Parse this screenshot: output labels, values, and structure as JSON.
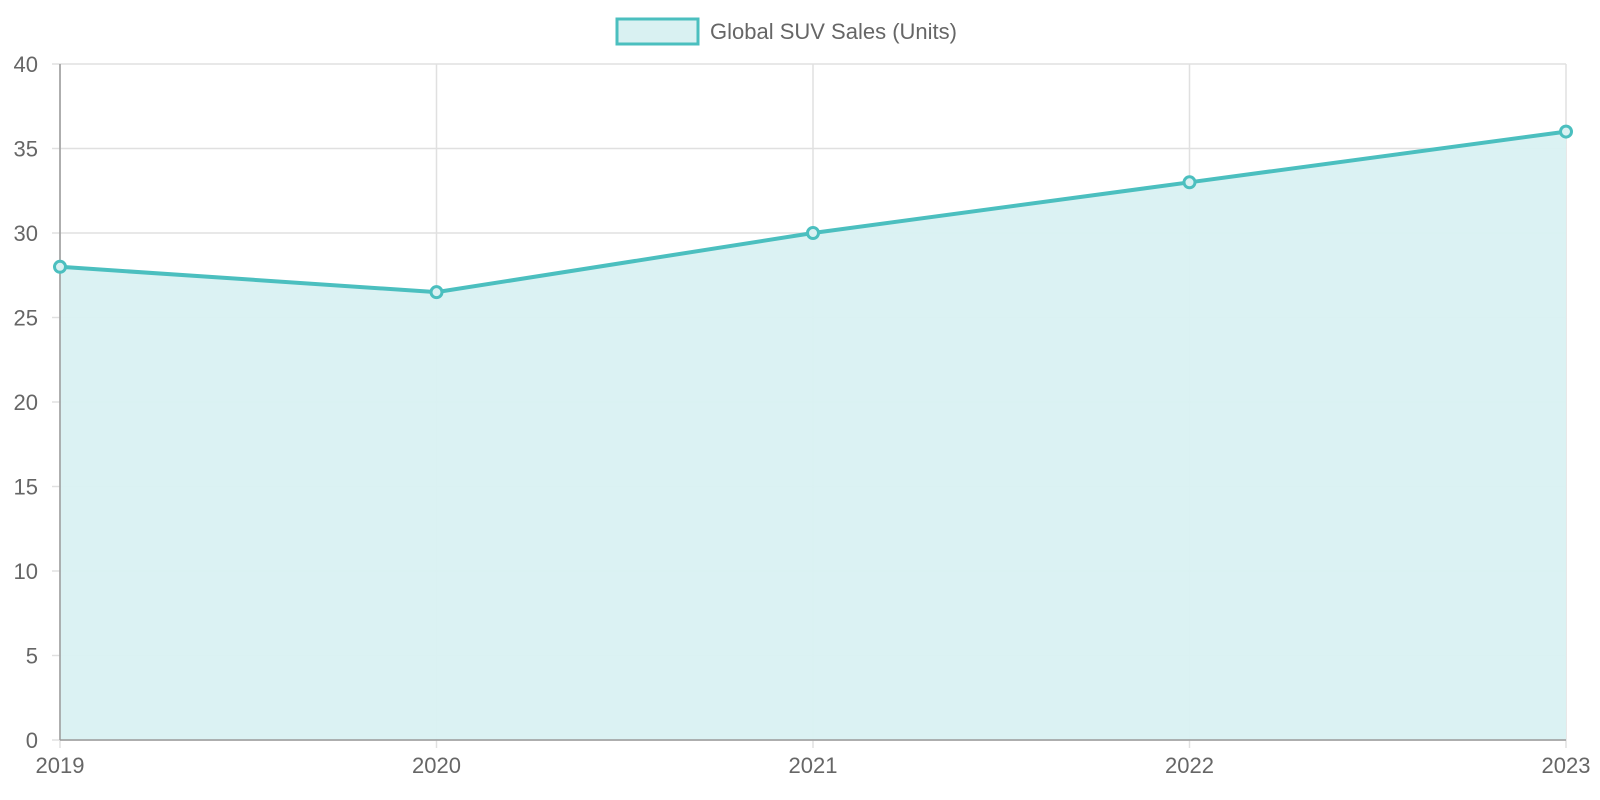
{
  "chart_data": {
    "type": "area",
    "categories": [
      "2019",
      "2020",
      "2021",
      "2022",
      "2023"
    ],
    "series": [
      {
        "name": "Global SUV Sales (Units)",
        "values": [
          28,
          26.5,
          30,
          33,
          36
        ]
      }
    ],
    "ylim": [
      0,
      40
    ],
    "yticks": [
      "0",
      "5",
      "10",
      "15",
      "20",
      "25",
      "30",
      "35",
      "40"
    ],
    "grid": true,
    "legend_position": "top",
    "colors": {
      "line": "#4bbfbf",
      "fill": "#d9f1f2",
      "grid": "#e0e0e0",
      "axis": "#999999",
      "text": "#666666"
    }
  }
}
